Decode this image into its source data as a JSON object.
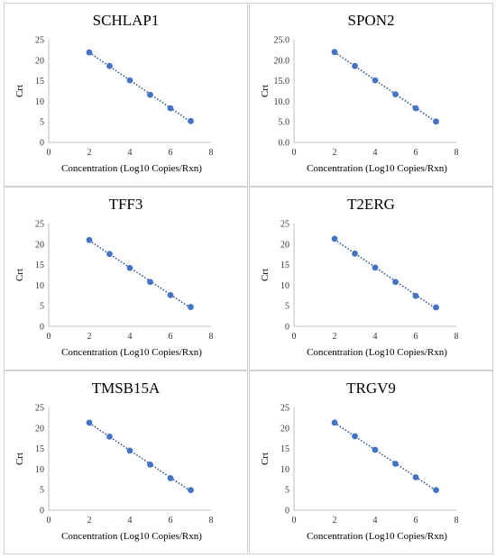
{
  "chart_data": [
    {
      "type": "scatter",
      "title": "SCHLAP1",
      "xlabel": "Concentration (Log10 Copies/Rxn)",
      "ylabel": "Crt",
      "xlim": [
        0,
        8
      ],
      "ylim": [
        0,
        25
      ],
      "x_ticks": [
        "0",
        "2",
        "4",
        "6",
        "8"
      ],
      "y_ticks": [
        "0",
        "5",
        "10",
        "15",
        "20",
        "25"
      ],
      "trendline": "linear dotted",
      "series": [
        {
          "x": [
            2,
            3,
            4,
            5,
            6,
            7
          ],
          "y": [
            21.9,
            18.6,
            15.1,
            11.6,
            8.3,
            5.2
          ]
        }
      ]
    },
    {
      "type": "scatter",
      "title": "SPON2",
      "xlabel": "Concentration (Log10 Copies/Rxn)",
      "ylabel": "Crt",
      "xlim": [
        0,
        8
      ],
      "ylim": [
        0,
        25
      ],
      "x_ticks": [
        "0",
        "2",
        "4",
        "6",
        "8"
      ],
      "y_ticks": [
        "0.0",
        "5.0",
        "10.0",
        "15.0",
        "20.0",
        "25.0"
      ],
      "trendline": "linear dotted",
      "series": [
        {
          "x": [
            2,
            3,
            4,
            5,
            6,
            7
          ],
          "y": [
            22.0,
            18.6,
            15.1,
            11.7,
            8.3,
            5.1
          ]
        }
      ]
    },
    {
      "type": "scatter",
      "title": "TFF3",
      "xlabel": "Concentration (Log10 Copies/Rxn)",
      "ylabel": "Crt",
      "xlim": [
        0,
        8
      ],
      "ylim": [
        0,
        25
      ],
      "x_ticks": [
        "0",
        "2",
        "4",
        "6",
        "8"
      ],
      "y_ticks": [
        "0",
        "5",
        "10",
        "15",
        "20",
        "25"
      ],
      "trendline": "linear dotted",
      "series": [
        {
          "x": [
            2,
            3,
            4,
            5,
            6,
            7
          ],
          "y": [
            21.0,
            17.6,
            14.2,
            10.8,
            7.6,
            4.7
          ]
        }
      ]
    },
    {
      "type": "scatter",
      "title": "T2ERG",
      "xlabel": "Concentration (Log10 Copies/Rxn)",
      "ylabel": "Crt",
      "xlim": [
        0,
        8
      ],
      "ylim": [
        0,
        25
      ],
      "x_ticks": [
        "0",
        "2",
        "4",
        "6",
        "8"
      ],
      "y_ticks": [
        "0",
        "5",
        "10",
        "15",
        "20",
        "25"
      ],
      "trendline": "linear dotted",
      "series": [
        {
          "x": [
            2,
            3,
            4,
            5,
            6,
            7
          ],
          "y": [
            21.3,
            17.7,
            14.3,
            10.8,
            7.4,
            4.6
          ]
        }
      ]
    },
    {
      "type": "scatter",
      "title": "TMSB15A",
      "xlabel": "Concentration (Log10 Copies/Rxn)",
      "ylabel": "Crt",
      "xlim": [
        0,
        8
      ],
      "ylim": [
        0,
        25
      ],
      "x_ticks": [
        "0",
        "2",
        "4",
        "6",
        "8"
      ],
      "y_ticks": [
        "0",
        "5",
        "10",
        "15",
        "20",
        "25"
      ],
      "trendline": "linear dotted",
      "series": [
        {
          "x": [
            2,
            3,
            4,
            5,
            6,
            7
          ],
          "y": [
            21.3,
            17.9,
            14.5,
            11.1,
            7.8,
            4.9
          ]
        }
      ]
    },
    {
      "type": "scatter",
      "title": "TRGV9",
      "xlabel": "Concentration (Log10 Copies/Rxn)",
      "ylabel": "Crt",
      "xlim": [
        0,
        8
      ],
      "ylim": [
        0,
        25
      ],
      "x_ticks": [
        "0",
        "2",
        "4",
        "6",
        "8"
      ],
      "y_ticks": [
        "0",
        "5",
        "10",
        "15",
        "20",
        "25"
      ],
      "trendline": "linear dotted",
      "series": [
        {
          "x": [
            2,
            3,
            4,
            5,
            6,
            7
          ],
          "y": [
            21.3,
            18.0,
            14.7,
            11.3,
            8.0,
            4.9
          ]
        }
      ]
    }
  ],
  "colors": {
    "marker": "#4472C4",
    "trendline": "#2F5597",
    "axis": "#bfbfbf",
    "panel_border": "#d0d0d0"
  }
}
